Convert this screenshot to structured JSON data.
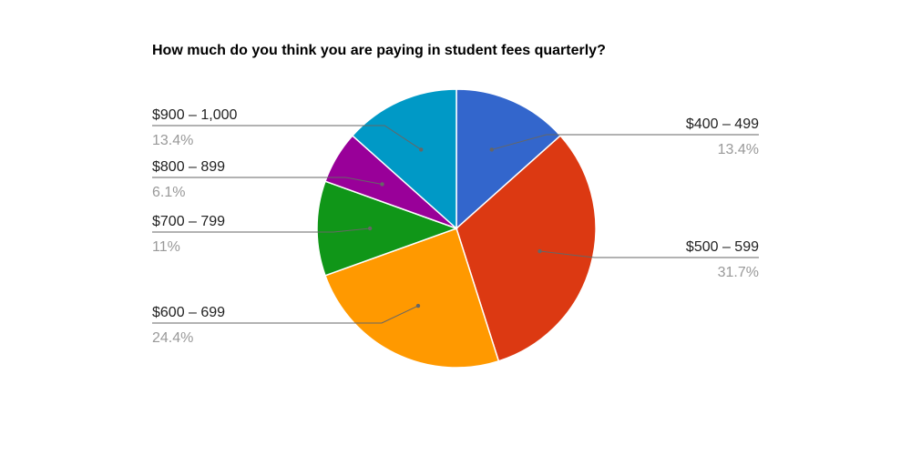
{
  "chart_data": {
    "type": "pie",
    "title": "How much do you think you are paying in student fees quarterly?",
    "slices": [
      {
        "label": "$400 – 499",
        "percent_label": "13.4%",
        "value": 13.4,
        "color": "#3366cc",
        "label_side": "right"
      },
      {
        "label": "$500 – 599",
        "percent_label": "31.7%",
        "value": 31.7,
        "color": "#dc3912",
        "label_side": "right"
      },
      {
        "label": "$600 – 699",
        "percent_label": "24.4%",
        "value": 24.4,
        "color": "#ff9900",
        "label_side": "left"
      },
      {
        "label": "$700 – 799",
        "percent_label": "11%",
        "value": 11.0,
        "color": "#109618",
        "label_side": "left"
      },
      {
        "label": "$800 – 899",
        "percent_label": "6.1%",
        "value": 6.1,
        "color": "#990099",
        "label_side": "left"
      },
      {
        "label": "$900 – 1,000",
        "percent_label": "13.4%",
        "value": 13.4,
        "color": "#0099c6",
        "label_side": "left"
      }
    ],
    "start_angle": "12 o'clock",
    "direction": "clockwise",
    "legend": "none (labeled slices)"
  }
}
